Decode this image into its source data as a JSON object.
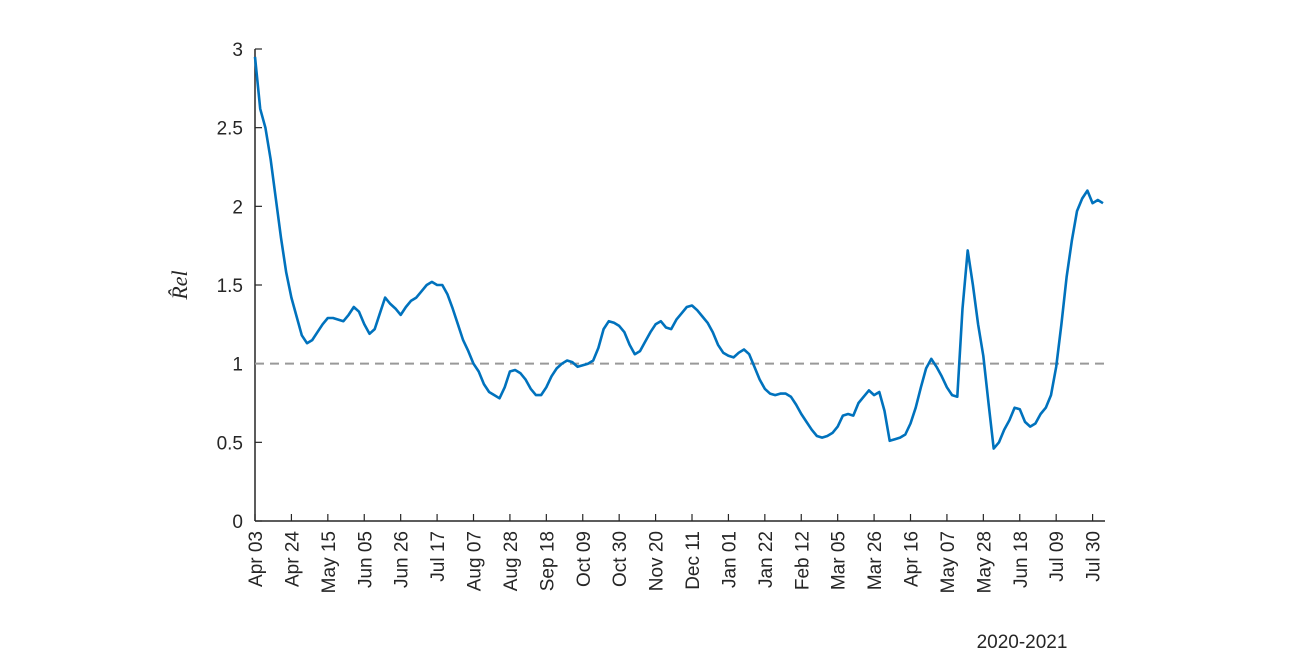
{
  "chart_data": {
    "type": "line",
    "ylabel": "R̂el",
    "xlabel": "2020-2021",
    "categories": [
      "Apr 03",
      null,
      null,
      null,
      null,
      null,
      null,
      "Apr 24",
      null,
      null,
      null,
      null,
      null,
      null,
      "May 15",
      null,
      null,
      null,
      null,
      null,
      null,
      "Jun 05",
      null,
      null,
      null,
      null,
      null,
      null,
      "Jun 26",
      null,
      null,
      null,
      null,
      null,
      null,
      "Jul 17",
      null,
      null,
      null,
      null,
      null,
      null,
      "Aug 07",
      null,
      null,
      null,
      null,
      null,
      null,
      "Aug 28",
      null,
      null,
      null,
      null,
      null,
      null,
      "Sep 18",
      null,
      null,
      null,
      null,
      null,
      null,
      "Oct 09",
      null,
      null,
      null,
      null,
      null,
      null,
      "Oct 30",
      null,
      null,
      null,
      null,
      null,
      null,
      "Nov 20",
      null,
      null,
      null,
      null,
      null,
      null,
      "Dec 11",
      null,
      null,
      null,
      null,
      null,
      null,
      "Jan 01",
      null,
      null,
      null,
      null,
      null,
      null,
      "Jan 22",
      null,
      null,
      null,
      null,
      null,
      null,
      "Feb 12",
      null,
      null,
      null,
      null,
      null,
      null,
      "Mar 05",
      null,
      null,
      null,
      null,
      null,
      null,
      "Mar 26",
      null,
      null,
      null,
      null,
      null,
      null,
      "Apr 16",
      null,
      null,
      null,
      null,
      null,
      null,
      "May 07",
      null,
      null,
      null,
      null,
      null,
      null,
      "May 28",
      null,
      null,
      null,
      null,
      null,
      null,
      "Jun 18",
      null,
      null,
      null,
      null,
      null,
      null,
      "Jul 09",
      null,
      null,
      null,
      null,
      null,
      null,
      "Jul 30",
      null,
      null
    ],
    "series": [
      {
        "color": "#0072BD",
        "values": [
          2.95,
          2.62,
          2.5,
          2.3,
          2.05,
          1.8,
          1.58,
          1.42,
          1.3,
          1.18,
          1.13,
          1.15,
          1.2,
          1.25,
          1.29,
          1.29,
          1.28,
          1.27,
          1.31,
          1.36,
          1.33,
          1.25,
          1.19,
          1.22,
          1.32,
          1.42,
          1.38,
          1.35,
          1.31,
          1.36,
          1.4,
          1.42,
          1.46,
          1.5,
          1.52,
          1.5,
          1.5,
          1.44,
          1.35,
          1.25,
          1.15,
          1.08,
          1.0,
          0.95,
          0.87,
          0.82,
          0.8,
          0.78,
          0.85,
          0.95,
          0.96,
          0.94,
          0.9,
          0.84,
          0.8,
          0.8,
          0.85,
          0.92,
          0.97,
          1.0,
          1.02,
          1.01,
          0.98,
          0.99,
          1.0,
          1.02,
          1.1,
          1.22,
          1.27,
          1.26,
          1.24,
          1.2,
          1.12,
          1.06,
          1.08,
          1.14,
          1.2,
          1.25,
          1.27,
          1.23,
          1.22,
          1.28,
          1.32,
          1.36,
          1.37,
          1.34,
          1.3,
          1.26,
          1.2,
          1.12,
          1.07,
          1.05,
          1.04,
          1.07,
          1.09,
          1.06,
          0.98,
          0.9,
          0.84,
          0.81,
          0.8,
          0.81,
          0.81,
          0.79,
          0.74,
          0.68,
          0.63,
          0.58,
          0.54,
          0.53,
          0.54,
          0.56,
          0.6,
          0.67,
          0.68,
          0.67,
          0.75,
          0.79,
          0.83,
          0.8,
          0.82,
          0.7,
          0.51,
          0.52,
          0.53,
          0.55,
          0.62,
          0.72,
          0.85,
          0.97,
          1.03,
          0.98,
          0.92,
          0.85,
          0.8,
          0.79,
          1.35,
          1.72,
          1.5,
          1.25,
          1.05,
          0.75,
          0.46,
          0.5,
          0.58,
          0.64,
          0.72,
          0.71,
          0.63,
          0.6,
          0.62,
          0.68,
          0.72,
          0.8,
          0.98,
          1.25,
          1.55,
          1.78,
          1.97,
          2.05,
          2.1,
          2.02,
          2.04,
          2.02
        ]
      }
    ],
    "reference_line": 1,
    "ylim": [
      0,
      3
    ],
    "yticks": [
      0,
      0.5,
      1,
      1.5,
      2,
      2.5,
      3
    ]
  }
}
